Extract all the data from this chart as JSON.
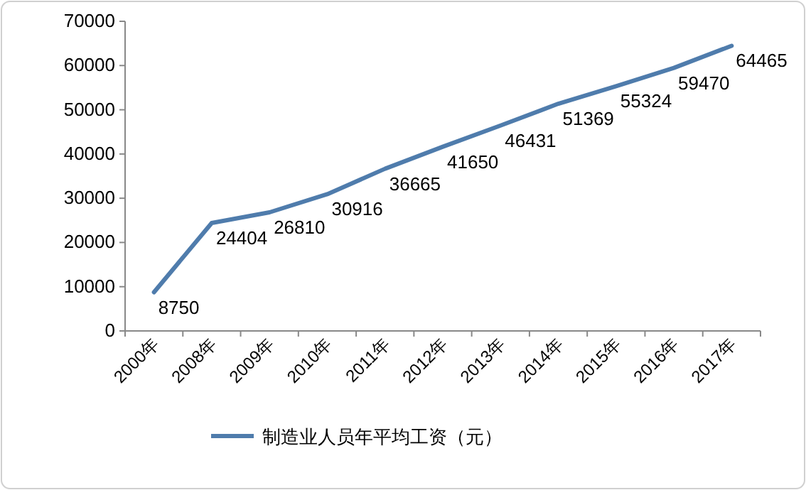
{
  "chart_data": {
    "type": "line",
    "categories": [
      "2000年",
      "2008年",
      "2009年",
      "2010年",
      "2011年",
      "2012年",
      "2013年",
      "2014年",
      "2015年",
      "2016年",
      "2017年"
    ],
    "series": [
      {
        "name": "制造业人员年平均工资（元）",
        "color": "#4f7cac",
        "values": [
          8750,
          24404,
          26810,
          30916,
          36665,
          41650,
          46431,
          51369,
          55324,
          59470,
          64465
        ]
      }
    ],
    "ylim": [
      0,
      70000
    ],
    "yticks": [
      0,
      10000,
      20000,
      30000,
      40000,
      50000,
      60000,
      70000
    ],
    "data_labels": true,
    "legend": "bottom",
    "grid": false,
    "marker": "none",
    "line_style": "solid"
  }
}
